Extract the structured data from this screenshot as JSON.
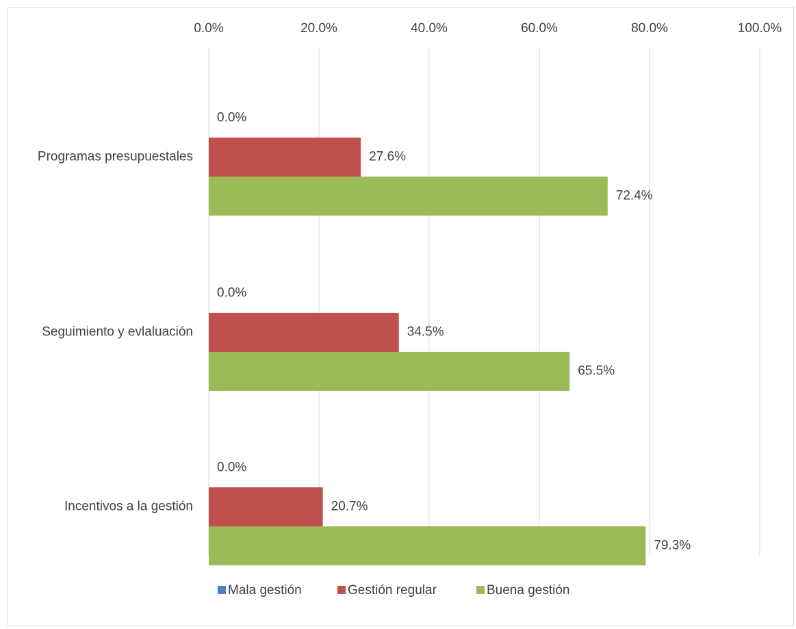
{
  "chart_data": {
    "type": "bar",
    "orientation": "horizontal",
    "categories": [
      "Programas presupuestales",
      "Seguimiento y evlaluación",
      "Incentivos a la gestión"
    ],
    "series": [
      {
        "name": "Mala gestión",
        "color": "#4f81bd",
        "values": [
          0.0,
          0.0,
          0.0
        ],
        "labels": [
          "0.0%",
          "0.0%",
          "0.0%"
        ]
      },
      {
        "name": "Gestión regular",
        "color": "#c0504d",
        "values": [
          27.6,
          34.5,
          20.7
        ],
        "labels": [
          "27.6%",
          "34.5%",
          "20.7%"
        ]
      },
      {
        "name": "Buena gestión",
        "color": "#9bbb59",
        "values": [
          72.4,
          65.5,
          79.3
        ],
        "labels": [
          "72.4%",
          "65.5%",
          "79.3%"
        ]
      }
    ],
    "xlim": [
      0,
      100
    ],
    "ticks": [
      0,
      20,
      40,
      60,
      80,
      100
    ],
    "tick_labels": [
      "0.0%",
      "20.0%",
      "40.0%",
      "60.0%",
      "80.0%",
      "100.0%"
    ],
    "axis_position": "top",
    "grid": true,
    "legend": "bottom",
    "title": "",
    "xlabel": "",
    "ylabel": ""
  }
}
